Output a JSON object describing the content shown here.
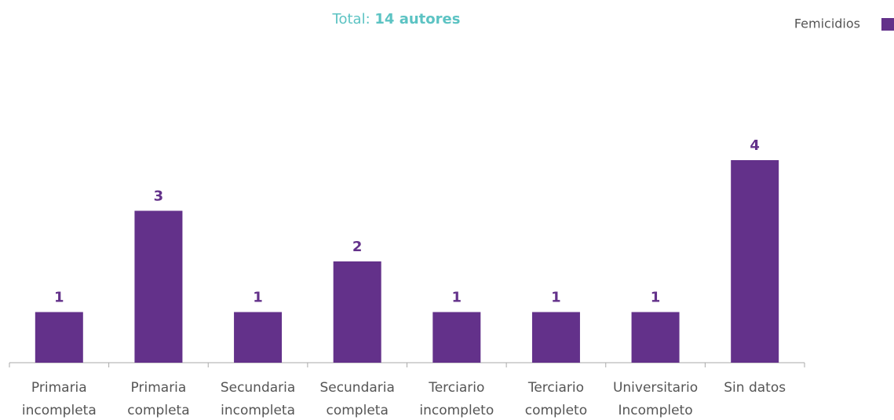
{
  "chart_data": {
    "type": "bar",
    "title": "Total:",
    "title_emphasis": "14 autores",
    "categories": [
      [
        "Primaria",
        "incompleta"
      ],
      [
        "Primaria",
        "completa"
      ],
      [
        "Secundaria",
        "incompleta"
      ],
      [
        "Secundaria",
        "completa"
      ],
      [
        "Terciario",
        "incompleto"
      ],
      [
        "Terciario",
        "completo"
      ],
      [
        "Universitario",
        "Incompleto"
      ],
      [
        "Sin datos"
      ]
    ],
    "series": [
      {
        "name": "Femicidios",
        "color": "#63318a",
        "values": [
          1,
          3,
          1,
          2,
          1,
          1,
          1,
          4
        ]
      }
    ],
    "ylim": [
      0,
      6
    ],
    "legend": "top-right"
  }
}
